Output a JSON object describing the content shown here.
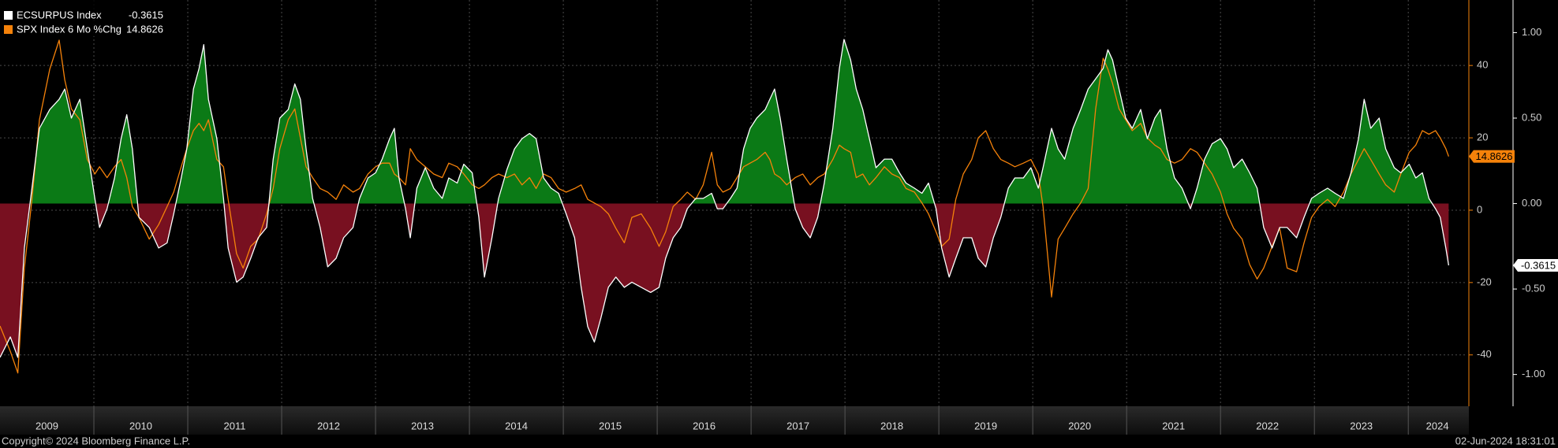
{
  "chart_data": {
    "type": "line",
    "x": [
      2009.0,
      2009.11,
      2009.19,
      2009.26,
      2009.34,
      2009.42,
      2009.53,
      2009.63,
      2009.69,
      2009.76,
      2009.85,
      2009.93,
      2010.01,
      2010.06,
      2010.14,
      2010.22,
      2010.29,
      2010.35,
      2010.41,
      2010.48,
      2010.59,
      2010.69,
      2010.78,
      2010.85,
      2010.93,
      2010.99,
      2011.06,
      2011.12,
      2011.17,
      2011.22,
      2011.31,
      2011.38,
      2011.43,
      2011.52,
      2011.59,
      2011.67,
      2011.75,
      2011.84,
      2011.91,
      2011.98,
      2012.07,
      2012.14,
      2012.2,
      2012.26,
      2012.33,
      2012.41,
      2012.49,
      2012.58,
      2012.66,
      2012.76,
      2012.83,
      2012.92,
      2013.0,
      2013.07,
      2013.15,
      2013.2,
      2013.25,
      2013.32,
      2013.37,
      2013.44,
      2013.53,
      2013.62,
      2013.71,
      2013.78,
      2013.87,
      2013.94,
      2014.03,
      2014.1,
      2014.16,
      2014.24,
      2014.31,
      2014.4,
      2014.48,
      2014.56,
      2014.64,
      2014.71,
      2014.79,
      2014.87,
      2014.95,
      2015.03,
      2015.12,
      2015.19,
      2015.26,
      2015.33,
      2015.4,
      2015.48,
      2015.56,
      2015.65,
      2015.73,
      2015.83,
      2015.93,
      2016.02,
      2016.09,
      2016.17,
      2016.25,
      2016.32,
      2016.41,
      2016.49,
      2016.58,
      2016.64,
      2016.7,
      2016.78,
      2016.85,
      2016.92,
      2016.99,
      2017.06,
      2017.15,
      2017.2,
      2017.25,
      2017.31,
      2017.38,
      2017.47,
      2017.55,
      2017.63,
      2017.71,
      2017.78,
      2017.87,
      2017.94,
      2017.99,
      2018.06,
      2018.12,
      2018.19,
      2018.26,
      2018.33,
      2018.42,
      2018.5,
      2018.58,
      2018.65,
      2018.74,
      2018.82,
      2018.89,
      2018.97,
      2019.03,
      2019.11,
      2019.18,
      2019.26,
      2019.35,
      2019.42,
      2019.5,
      2019.58,
      2019.66,
      2019.74,
      2019.81,
      2019.9,
      2019.98,
      2020.06,
      2020.11,
      2020.2,
      2020.27,
      2020.34,
      2020.43,
      2020.51,
      2020.59,
      2020.67,
      2020.75,
      2020.8,
      2020.85,
      2020.92,
      2020.99,
      2021.06,
      2021.15,
      2021.22,
      2021.3,
      2021.36,
      2021.43,
      2021.51,
      2021.59,
      2021.68,
      2021.75,
      2021.83,
      2021.91,
      2022.0,
      2022.07,
      2022.14,
      2022.23,
      2022.31,
      2022.39,
      2022.46,
      2022.55,
      2022.63,
      2022.71,
      2022.81,
      2022.89,
      2022.97,
      2023.05,
      2023.14,
      2023.22,
      2023.31,
      2023.39,
      2023.47,
      2023.53,
      2023.6,
      2023.69,
      2023.76,
      2023.85,
      2023.92,
      2024.01,
      2024.08,
      2024.15,
      2024.22,
      2024.29,
      2024.34,
      2024.4,
      2024.43
    ],
    "series": [
      {
        "name": "ECSURPUS Index",
        "color": "#ffffff",
        "axis": "y2",
        "positive_color": "#0b7a16",
        "negative_color": "#781020",
        "values": [
          -0.9,
          -0.78,
          -0.9,
          -0.26,
          0.09,
          0.44,
          0.55,
          0.61,
          0.67,
          0.5,
          0.61,
          0.32,
          0.03,
          -0.14,
          -0.03,
          0.15,
          0.38,
          0.52,
          0.32,
          -0.08,
          -0.14,
          -0.26,
          -0.23,
          -0.06,
          0.15,
          0.32,
          0.67,
          0.79,
          0.93,
          0.61,
          0.38,
          0.03,
          -0.26,
          -0.46,
          -0.43,
          -0.32,
          -0.2,
          -0.14,
          0.26,
          0.5,
          0.55,
          0.7,
          0.61,
          0.32,
          0.03,
          -0.14,
          -0.37,
          -0.32,
          -0.2,
          -0.14,
          0.03,
          0.15,
          0.18,
          0.26,
          0.38,
          0.44,
          0.15,
          -0.03,
          -0.2,
          0.09,
          0.21,
          0.09,
          0.03,
          0.15,
          0.12,
          0.23,
          0.18,
          -0.08,
          -0.43,
          -0.2,
          0.03,
          0.2,
          0.32,
          0.38,
          0.41,
          0.38,
          0.15,
          0.09,
          0.06,
          -0.06,
          -0.2,
          -0.49,
          -0.72,
          -0.81,
          -0.67,
          -0.49,
          -0.43,
          -0.49,
          -0.46,
          -0.49,
          -0.52,
          -0.49,
          -0.32,
          -0.2,
          -0.14,
          -0.03,
          0.03,
          0.03,
          0.06,
          -0.03,
          -0.03,
          0.03,
          0.09,
          0.32,
          0.44,
          0.5,
          0.55,
          0.61,
          0.67,
          0.5,
          0.26,
          -0.03,
          -0.14,
          -0.2,
          -0.08,
          0.12,
          0.44,
          0.79,
          0.96,
          0.84,
          0.67,
          0.55,
          0.38,
          0.21,
          0.26,
          0.26,
          0.18,
          0.12,
          0.09,
          0.06,
          0.12,
          -0.03,
          -0.26,
          -0.43,
          -0.32,
          -0.2,
          -0.2,
          -0.32,
          -0.37,
          -0.2,
          -0.08,
          0.09,
          0.15,
          0.15,
          0.21,
          0.09,
          0.21,
          0.44,
          0.32,
          0.26,
          0.44,
          0.55,
          0.67,
          0.73,
          0.79,
          0.9,
          0.84,
          0.67,
          0.5,
          0.44,
          0.55,
          0.38,
          0.5,
          0.55,
          0.32,
          0.15,
          0.09,
          -0.03,
          0.09,
          0.26,
          0.35,
          0.38,
          0.32,
          0.21,
          0.26,
          0.18,
          0.09,
          -0.14,
          -0.26,
          -0.14,
          -0.14,
          -0.2,
          -0.08,
          0.03,
          0.06,
          0.09,
          0.06,
          0.03,
          0.18,
          0.38,
          0.61,
          0.44,
          0.5,
          0.32,
          0.21,
          0.18,
          0.23,
          0.15,
          0.18,
          0.03,
          -0.03,
          -0.08,
          -0.26,
          -0.3615
        ]
      },
      {
        "name": "SPX Index 6 Mo %Chg",
        "color": "#f5820a",
        "axis": "y",
        "values": [
          -32,
          -39,
          -45,
          -16,
          3,
          25,
          39,
          47,
          36,
          28,
          25,
          14,
          10,
          12,
          9,
          12,
          14,
          9,
          1,
          -2,
          -8,
          -4,
          1,
          5,
          12,
          17,
          22,
          24,
          22,
          25,
          14,
          12,
          3,
          -12,
          -16,
          -10,
          -8,
          -1,
          6,
          17,
          25,
          28,
          20,
          12,
          9,
          6,
          5,
          3,
          7,
          5,
          6,
          10,
          12,
          13,
          13,
          10,
          9,
          7,
          17,
          14,
          12,
          10,
          9,
          13,
          12,
          10,
          7,
          6,
          7,
          9,
          10,
          9,
          10,
          7,
          9,
          6,
          10,
          9,
          6,
          5,
          6,
          7,
          3,
          2,
          1,
          -1,
          -5,
          -9,
          -2,
          -1,
          -5,
          -10,
          -6,
          1,
          3,
          5,
          3,
          7,
          16,
          7,
          5,
          6,
          9,
          12,
          13,
          14,
          16,
          14,
          10,
          9,
          7,
          9,
          10,
          7,
          9,
          10,
          14,
          18,
          17,
          16,
          9,
          10,
          7,
          9,
          12,
          10,
          9,
          6,
          5,
          2,
          -1,
          -6,
          -10,
          -8,
          3,
          10,
          14,
          20,
          22,
          17,
          14,
          13,
          12,
          13,
          14,
          10,
          1,
          -24,
          -8,
          -5,
          -1,
          2,
          6,
          28,
          42,
          39,
          35,
          28,
          25,
          22,
          24,
          20,
          18,
          17,
          14,
          13,
          14,
          17,
          16,
          13,
          10,
          5,
          -1,
          -5,
          -8,
          -15,
          -19,
          -16,
          -10,
          -5,
          -16,
          -17,
          -9,
          -2,
          1,
          3,
          1,
          5,
          10,
          14,
          17,
          14,
          10,
          7,
          5,
          10,
          16,
          18,
          22,
          21,
          22,
          20,
          17,
          14.8626
        ]
      }
    ],
    "xlim": [
      2009.0,
      2024.62
    ],
    "years": [
      2009,
      2010,
      2011,
      2012,
      2013,
      2014,
      2015,
      2016,
      2017,
      2018,
      2019,
      2020,
      2021,
      2022,
      2023,
      2024
    ],
    "ylim": [
      -54.2,
      58.1
    ],
    "yticks": [
      40,
      20,
      0,
      -20,
      -40
    ],
    "y2lim": [
      -1.186,
      1.191
    ],
    "y2ticks": [
      {
        "value": 1,
        "label": "1.00"
      },
      {
        "value": 0.5,
        "label": "0.50"
      },
      {
        "value": 0,
        "label": "0.00"
      },
      {
        "value": -0.5,
        "label": "-0.50"
      },
      {
        "value": -1,
        "label": "-1.00"
      }
    ],
    "grid": true,
    "legend": "top-left",
    "footer_left": "Copyright© 2024 Bloomberg Finance L.P.",
    "footer_right": "02-Jun-2024 18:31:01"
  }
}
